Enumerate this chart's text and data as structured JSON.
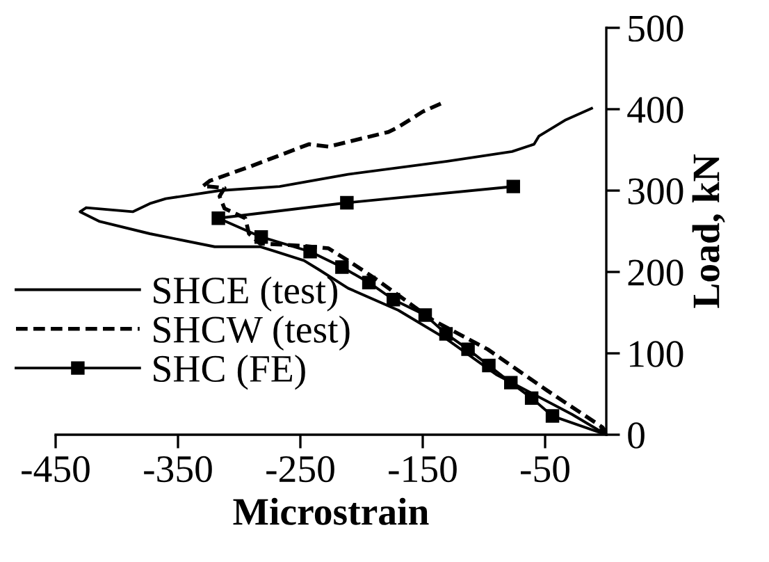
{
  "chart_data": {
    "type": "line",
    "xlabel": "Microstrain",
    "ylabel": "Load, kN",
    "xlim": [
      -450,
      0
    ],
    "xticks": [
      -450,
      -350,
      -250,
      -150,
      -50
    ],
    "ylim": [
      0,
      500
    ],
    "yticks": [
      0,
      100,
      200,
      300,
      400,
      500
    ],
    "grid": false,
    "legend": "left",
    "series": [
      {
        "name": "SHCE (test)",
        "color": "#000000",
        "line_style": "solid",
        "marker": "none",
        "x": [
          0,
          -28,
          -90,
          -130,
          -170,
          -211,
          -235,
          -247,
          -272,
          -283,
          -320,
          -373,
          -414,
          -430,
          -425,
          -387,
          -373,
          -360,
          -316,
          -267,
          -211,
          -130,
          -77,
          -59,
          -55,
          -33,
          -12
        ],
        "values": [
          0,
          25,
          74,
          117,
          153,
          180,
          203,
          214,
          226,
          231,
          231,
          247,
          262,
          274,
          279,
          274,
          284,
          290,
          300,
          305,
          320,
          336,
          348,
          357,
          367,
          387,
          401
        ]
      },
      {
        "name": "SHCW (test)",
        "color": "#000000",
        "line_style": "dashed",
        "marker": "none",
        "x": [
          0,
          -3,
          -49,
          -97,
          -142,
          -187,
          -211,
          -227,
          -247,
          -283,
          -292,
          -295,
          -312,
          -316,
          -312,
          -324,
          -330,
          -324,
          -292,
          -243,
          -227,
          -178,
          -170,
          -150,
          -132
        ],
        "values": [
          0,
          9,
          55,
          105,
          141,
          190,
          214,
          229,
          232,
          235,
          247,
          266,
          278,
          293,
          303,
          305,
          305,
          312,
          329,
          357,
          354,
          372,
          378,
          397,
          409
        ]
      },
      {
        "name": "SHC (FE)",
        "color": "#000000",
        "line_style": "solid",
        "marker": "square",
        "x": [
          0,
          -44,
          -61,
          -78,
          -96,
          -113,
          -131,
          -148,
          -174,
          -194,
          -216,
          -242,
          -282,
          -317,
          -212,
          -76
        ],
        "values": [
          0,
          23,
          45,
          64,
          85,
          105,
          124,
          147,
          166,
          187,
          206,
          225,
          243,
          266,
          285,
          305
        ]
      }
    ]
  }
}
